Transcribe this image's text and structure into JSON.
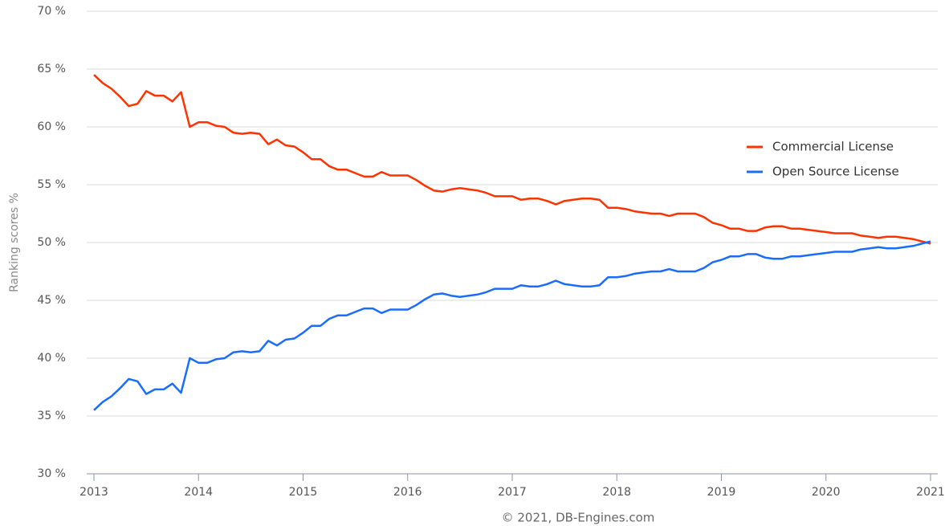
{
  "chart_data": {
    "type": "line",
    "y_label": "Ranking scores %",
    "credit": "© 2021, DB-Engines.com",
    "x": [
      2013,
      2013.083,
      2013.167,
      2013.25,
      2013.333,
      2013.417,
      2013.5,
      2013.583,
      2013.667,
      2013.75,
      2013.833,
      2013.917,
      2014,
      2014.083,
      2014.167,
      2014.25,
      2014.333,
      2014.417,
      2014.5,
      2014.583,
      2014.667,
      2014.75,
      2014.833,
      2014.917,
      2015,
      2015.083,
      2015.167,
      2015.25,
      2015.333,
      2015.417,
      2015.5,
      2015.583,
      2015.667,
      2015.75,
      2015.833,
      2015.917,
      2016,
      2016.083,
      2016.167,
      2016.25,
      2016.333,
      2016.417,
      2016.5,
      2016.583,
      2016.667,
      2016.75,
      2016.833,
      2016.917,
      2017,
      2017.083,
      2017.167,
      2017.25,
      2017.333,
      2017.417,
      2017.5,
      2017.583,
      2017.667,
      2017.75,
      2017.833,
      2017.917,
      2018,
      2018.083,
      2018.167,
      2018.25,
      2018.333,
      2018.417,
      2018.5,
      2018.583,
      2018.667,
      2018.75,
      2018.833,
      2018.917,
      2019,
      2019.083,
      2019.167,
      2019.25,
      2019.333,
      2019.417,
      2019.5,
      2019.583,
      2019.667,
      2019.75,
      2019.833,
      2019.917,
      2020,
      2020.083,
      2020.167,
      2020.25,
      2020.333,
      2020.417,
      2020.5,
      2020.583,
      2020.667,
      2020.75,
      2020.833,
      2020.917,
      2021
    ],
    "series": [
      {
        "name": "Commercial License",
        "color": "#ff3300",
        "values": [
          64.5,
          63.8,
          63.3,
          62.6,
          61.8,
          62.0,
          63.1,
          62.7,
          62.7,
          62.2,
          63.0,
          60.0,
          60.4,
          60.4,
          60.1,
          60.0,
          59.5,
          59.4,
          59.5,
          59.4,
          58.5,
          58.9,
          58.4,
          58.3,
          57.8,
          57.2,
          57.2,
          56.6,
          56.3,
          56.3,
          56.0,
          55.7,
          55.7,
          56.1,
          55.8,
          55.8,
          55.8,
          55.4,
          54.9,
          54.5,
          54.4,
          54.6,
          54.7,
          54.6,
          54.5,
          54.3,
          54.0,
          54.0,
          54.0,
          53.7,
          53.8,
          53.8,
          53.6,
          53.3,
          53.6,
          53.7,
          53.8,
          53.8,
          53.7,
          53.0,
          53.0,
          52.9,
          52.7,
          52.6,
          52.5,
          52.5,
          52.3,
          52.5,
          52.5,
          52.5,
          52.2,
          51.7,
          51.5,
          51.2,
          51.2,
          51.0,
          51.0,
          51.3,
          51.4,
          51.4,
          51.2,
          51.2,
          51.1,
          51.0,
          50.9,
          50.8,
          50.8,
          50.8,
          50.6,
          50.5,
          50.4,
          50.5,
          50.5,
          50.4,
          50.3,
          50.1,
          49.9
        ]
      },
      {
        "name": "Open Source License",
        "color": "#1a6cff",
        "values": [
          35.5,
          36.2,
          36.7,
          37.4,
          38.2,
          38.0,
          36.9,
          37.3,
          37.3,
          37.8,
          37.0,
          40.0,
          39.6,
          39.6,
          39.9,
          40.0,
          40.5,
          40.6,
          40.5,
          40.6,
          41.5,
          41.1,
          41.6,
          41.7,
          42.2,
          42.8,
          42.8,
          43.4,
          43.7,
          43.7,
          44.0,
          44.3,
          44.3,
          43.9,
          44.2,
          44.2,
          44.2,
          44.6,
          45.1,
          45.5,
          45.6,
          45.4,
          45.3,
          45.4,
          45.5,
          45.7,
          46.0,
          46.0,
          46.0,
          46.3,
          46.2,
          46.2,
          46.4,
          46.7,
          46.4,
          46.3,
          46.2,
          46.2,
          46.3,
          47.0,
          47.0,
          47.1,
          47.3,
          47.4,
          47.5,
          47.5,
          47.7,
          47.5,
          47.5,
          47.5,
          47.8,
          48.3,
          48.5,
          48.8,
          48.8,
          49.0,
          49.0,
          48.7,
          48.6,
          48.6,
          48.8,
          48.8,
          48.9,
          49.0,
          49.1,
          49.2,
          49.2,
          49.2,
          49.4,
          49.5,
          49.6,
          49.5,
          49.5,
          49.6,
          49.7,
          49.9,
          50.1
        ]
      }
    ],
    "xlim": [
      2013,
      2021
    ],
    "xticks": [
      2013,
      2014,
      2015,
      2016,
      2017,
      2018,
      2019,
      2020,
      2021
    ],
    "ylim": [
      30,
      70
    ],
    "yticks": [
      {
        "value": 30,
        "label": "30 %"
      },
      {
        "value": 35,
        "label": "35 %"
      },
      {
        "value": 40,
        "label": "40 %"
      },
      {
        "value": 45,
        "label": "45 %"
      },
      {
        "value": 50,
        "label": "50 %"
      },
      {
        "value": 55,
        "label": "55 %"
      },
      {
        "value": 60,
        "label": "60 %"
      },
      {
        "value": 65,
        "label": "65 %"
      },
      {
        "value": 70,
        "label": "70 %"
      }
    ],
    "grid": true,
    "legend": "right"
  }
}
